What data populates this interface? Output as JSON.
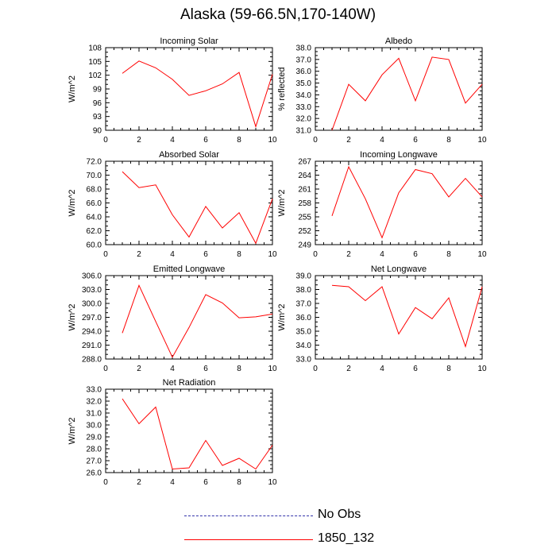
{
  "page": {
    "title": "Alaska (59-66.5N,170-140W)"
  },
  "colors": {
    "model_line": "#ff0000",
    "obs_line": "#3333aa",
    "axis": "#000000"
  },
  "legend": {
    "items": [
      {
        "label": "No Obs",
        "style": "dashed",
        "color": "#3333aa"
      },
      {
        "label": "1850_132",
        "style": "solid",
        "color": "#ff0000"
      }
    ]
  },
  "chart_data": [
    {
      "type": "line",
      "title": "Incoming Solar",
      "ylabel": "W/m^2",
      "xlabel": "",
      "xlim": [
        0,
        10
      ],
      "ylim": [
        90,
        108
      ],
      "x_ticks": [
        0,
        2,
        4,
        6,
        8,
        10
      ],
      "y_ticks": [
        "90",
        "93",
        "96",
        "99",
        "102",
        "105",
        "108"
      ],
      "y_tick_values": [
        90,
        93,
        96,
        99,
        102,
        105,
        108
      ],
      "grid": false,
      "series": [
        {
          "name": "1850_132",
          "x": [
            1,
            2,
            3,
            4,
            5,
            6,
            7,
            8,
            9,
            10
          ],
          "y": [
            102.4,
            105.1,
            103.6,
            101.1,
            97.6,
            98.6,
            100.1,
            102.6,
            90.8,
            102.2
          ]
        }
      ]
    },
    {
      "type": "line",
      "title": "Albedo",
      "ylabel": "% reflected",
      "xlabel": "",
      "xlim": [
        0,
        10
      ],
      "ylim": [
        31,
        38
      ],
      "x_ticks": [
        0,
        2,
        4,
        6,
        8,
        10
      ],
      "y_ticks": [
        "31.0",
        "32.0",
        "33.0",
        "34.0",
        "35.0",
        "36.0",
        "37.0",
        "38.0"
      ],
      "y_tick_values": [
        31,
        32,
        33,
        34,
        35,
        36,
        37,
        38
      ],
      "grid": false,
      "series": [
        {
          "name": "1850_132",
          "x": [
            1,
            2,
            3,
            4,
            5,
            6,
            7,
            8,
            9,
            10
          ],
          "y": [
            31.0,
            34.9,
            33.5,
            35.7,
            37.1,
            33.5,
            37.2,
            37.0,
            33.3,
            34.9
          ]
        }
      ]
    },
    {
      "type": "line",
      "title": "Absorbed Solar",
      "ylabel": "W/m^2",
      "xlabel": "",
      "xlim": [
        0,
        10
      ],
      "ylim": [
        60,
        72
      ],
      "x_ticks": [
        0,
        2,
        4,
        6,
        8,
        10
      ],
      "y_ticks": [
        "60.0",
        "62.0",
        "64.0",
        "66.0",
        "68.0",
        "70.0",
        "72.0"
      ],
      "y_tick_values": [
        60,
        62,
        64,
        66,
        68,
        70,
        72
      ],
      "grid": false,
      "series": [
        {
          "name": "1850_132",
          "x": [
            1,
            2,
            3,
            4,
            5,
            6,
            7,
            8,
            9,
            10
          ],
          "y": [
            70.5,
            68.2,
            68.6,
            64.3,
            61.1,
            65.5,
            62.4,
            64.6,
            60.2,
            66.6
          ]
        }
      ]
    },
    {
      "type": "line",
      "title": "Incoming Longwave",
      "ylabel": "W/m^2",
      "xlabel": "",
      "xlim": [
        0,
        10
      ],
      "ylim": [
        249,
        267
      ],
      "x_ticks": [
        0,
        2,
        4,
        6,
        8,
        10
      ],
      "y_ticks": [
        "249",
        "252",
        "255",
        "258",
        "261",
        "264",
        "267"
      ],
      "y_tick_values": [
        249,
        252,
        255,
        258,
        261,
        264,
        267
      ],
      "grid": false,
      "series": [
        {
          "name": "1850_132",
          "x": [
            1,
            2,
            3,
            4,
            5,
            6,
            7,
            8,
            9,
            10
          ],
          "y": [
            255.2,
            265.8,
            258.9,
            250.5,
            260.2,
            265.2,
            264.3,
            259.3,
            263.3,
            259.3
          ]
        }
      ]
    },
    {
      "type": "line",
      "title": "Emitted Longwave",
      "ylabel": "W/m^2",
      "xlabel": "",
      "xlim": [
        0,
        10
      ],
      "ylim": [
        288,
        306
      ],
      "x_ticks": [
        0,
        2,
        4,
        6,
        8,
        10
      ],
      "y_ticks": [
        "288.0",
        "291.0",
        "294.0",
        "297.0",
        "300.0",
        "303.0",
        "306.0"
      ],
      "y_tick_values": [
        288,
        291,
        294,
        297,
        300,
        303,
        306
      ],
      "grid": false,
      "series": [
        {
          "name": "1850_132",
          "x": [
            1,
            2,
            3,
            4,
            5,
            6,
            7,
            8,
            9,
            10
          ],
          "y": [
            293.6,
            303.9,
            296.1,
            288.4,
            294.8,
            301.9,
            300.1,
            296.9,
            297.1,
            297.7
          ]
        }
      ]
    },
    {
      "type": "line",
      "title": "Net Longwave",
      "ylabel": "W/m^2",
      "xlabel": "",
      "xlim": [
        0,
        10
      ],
      "ylim": [
        33,
        39
      ],
      "x_ticks": [
        0,
        2,
        4,
        6,
        8,
        10
      ],
      "y_ticks": [
        "33.0",
        "34.0",
        "35.0",
        "36.0",
        "37.0",
        "38.0",
        "39.0"
      ],
      "y_tick_values": [
        33,
        34,
        35,
        36,
        37,
        38,
        39
      ],
      "grid": false,
      "series": [
        {
          "name": "1850_132",
          "x": [
            1,
            2,
            3,
            4,
            5,
            6,
            7,
            8,
            9,
            10
          ],
          "y": [
            38.3,
            38.2,
            37.2,
            38.2,
            34.8,
            36.7,
            35.9,
            37.4,
            33.9,
            38.2
          ]
        }
      ]
    },
    {
      "type": "line",
      "title": "Net Radiation",
      "ylabel": "W/m^2",
      "xlabel": "",
      "xlim": [
        0,
        10
      ],
      "ylim": [
        26,
        33
      ],
      "x_ticks": [
        0,
        2,
        4,
        6,
        8,
        10
      ],
      "y_ticks": [
        "26.0",
        "27.0",
        "28.0",
        "29.0",
        "30.0",
        "31.0",
        "32.0",
        "33.0"
      ],
      "y_tick_values": [
        26,
        27,
        28,
        29,
        30,
        31,
        32,
        33
      ],
      "grid": false,
      "series": [
        {
          "name": "1850_132",
          "x": [
            1,
            2,
            3,
            4,
            5,
            6,
            7,
            8,
            9,
            10
          ],
          "y": [
            32.2,
            30.1,
            31.5,
            26.3,
            26.4,
            28.7,
            26.6,
            27.2,
            26.3,
            28.3
          ]
        }
      ]
    }
  ]
}
